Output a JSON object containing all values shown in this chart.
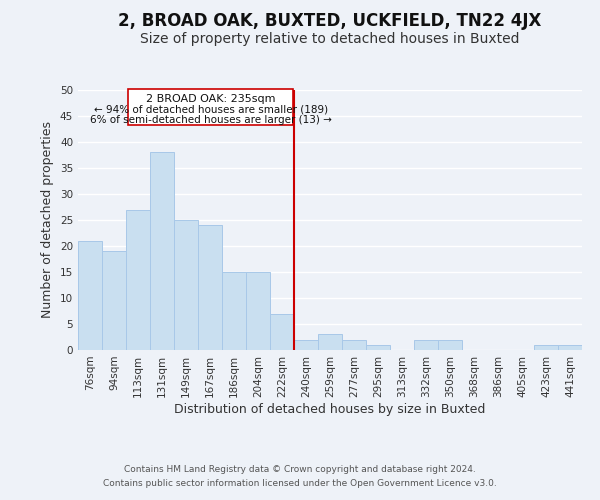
{
  "title": "2, BROAD OAK, BUXTED, UCKFIELD, TN22 4JX",
  "subtitle": "Size of property relative to detached houses in Buxted",
  "xlabel": "Distribution of detached houses by size in Buxted",
  "ylabel": "Number of detached properties",
  "bar_labels": [
    "76sqm",
    "94sqm",
    "113sqm",
    "131sqm",
    "149sqm",
    "167sqm",
    "186sqm",
    "204sqm",
    "222sqm",
    "240sqm",
    "259sqm",
    "277sqm",
    "295sqm",
    "313sqm",
    "332sqm",
    "350sqm",
    "368sqm",
    "386sqm",
    "405sqm",
    "423sqm",
    "441sqm"
  ],
  "bar_values": [
    21,
    19,
    27,
    38,
    25,
    24,
    15,
    15,
    7,
    2,
    3,
    2,
    1,
    0,
    2,
    2,
    0,
    0,
    0,
    1,
    1
  ],
  "bar_color": "#c9dff0",
  "bar_edge_color": "#a8c8e8",
  "ylim": [
    0,
    50
  ],
  "yticks": [
    0,
    5,
    10,
    15,
    20,
    25,
    30,
    35,
    40,
    45,
    50
  ],
  "vline_color": "#cc0000",
  "annotation_title": "2 BROAD OAK: 235sqm",
  "annotation_line1": "← 94% of detached houses are smaller (189)",
  "annotation_line2": "6% of semi-detached houses are larger (13) →",
  "annotation_box_edge": "#cc0000",
  "footer_line1": "Contains HM Land Registry data © Crown copyright and database right 2024.",
  "footer_line2": "Contains public sector information licensed under the Open Government Licence v3.0.",
  "background_color": "#eef2f8",
  "grid_color": "#ffffff",
  "title_fontsize": 12,
  "subtitle_fontsize": 10,
  "axis_label_fontsize": 9,
  "tick_label_fontsize": 7.5,
  "footer_fontsize": 6.5
}
